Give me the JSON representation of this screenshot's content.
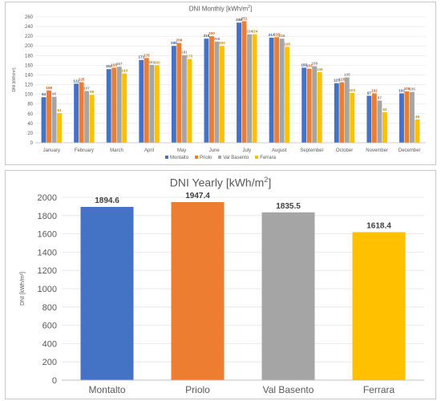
{
  "chart_data": [
    {
      "type": "bar",
      "title": "DNI Monthly [kWh/m²]",
      "title_main": "DNI Monthly [kWh/m",
      "title_sup": "2",
      "title_end": "]",
      "ylabel": "DNI [kWh/m²]",
      "ylim": [
        0,
        260
      ],
      "yticks": [
        0,
        20,
        40,
        60,
        80,
        100,
        120,
        140,
        160,
        180,
        200,
        220,
        240,
        260
      ],
      "grid": true,
      "legend": "bottom",
      "categories": [
        "January",
        "February",
        "March",
        "April",
        "May",
        "June",
        "July",
        "August",
        "September",
        "October",
        "November",
        "December"
      ],
      "series": [
        {
          "name": "Montalto",
          "color": "#4472c4",
          "values": [
            94,
            122,
            152,
            171,
            200,
            215,
            248,
            217,
            155,
            123,
            97,
            102
          ]
        },
        {
          "name": "Priolo",
          "color": "#ed7d31",
          "values": [
            108,
            125,
            155,
            175,
            206,
            220,
            251,
            218,
            153,
            125,
            102,
            106
          ]
        },
        {
          "name": "Val Basento",
          "color": "#a5a5a5",
          "values": [
            95,
            107,
            157,
            161,
            181,
            209,
            224,
            215,
            158,
            135,
            87,
            105
          ]
        },
        {
          "name": "Ferrara",
          "color": "#ffc000",
          "values": [
            61,
            99,
            143,
            160,
            173,
            200,
            224,
            198,
            146,
            103,
            63,
            48
          ]
        }
      ]
    },
    {
      "type": "bar",
      "title": "DNI Yearly [kWh/m²]",
      "title_main": "DNI Yearly [kWh/m",
      "title_sup": "2",
      "title_end": "]",
      "ylabel": "DNI [kWh/m²]",
      "ylim": [
        0,
        2000
      ],
      "yticks": [
        0,
        200,
        400,
        600,
        800,
        1000,
        1200,
        1400,
        1600,
        1800,
        2000
      ],
      "grid": true,
      "categories": [
        "Montalto",
        "Priolo",
        "Val Basento",
        "Ferrara"
      ],
      "values": [
        1894.6,
        1947.4,
        1835.5,
        1618.4
      ],
      "labels": [
        "1894.6",
        "1947.4",
        "1835.5",
        "1618.4"
      ],
      "colors": [
        "#4472c4",
        "#ed7d31",
        "#a5a5a5",
        "#ffc000"
      ]
    }
  ]
}
